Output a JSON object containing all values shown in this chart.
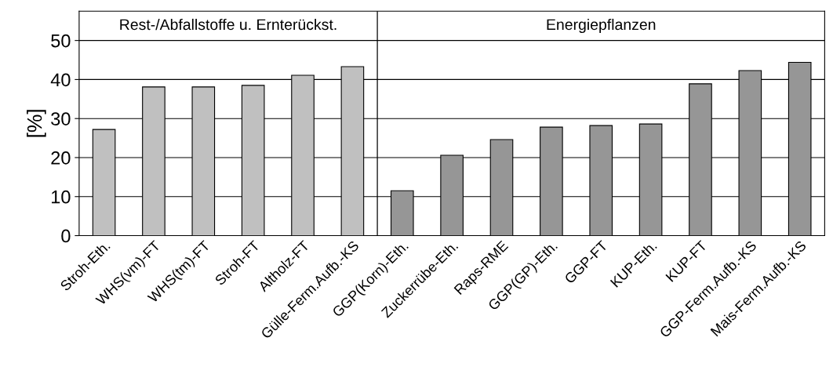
{
  "chart_data": {
    "type": "bar",
    "ylabel": "[%]",
    "categories": [
      "Stroh-Eth.",
      "WHS(vm)-FT",
      "WHS(tm)-FT",
      "Stroh-FT",
      "Altholz-FT",
      "Gülle-Ferm.Aufb.-KS",
      "GGP(Korn)-Eth.",
      "Zuckerrübe-Eth.",
      "Raps-RME",
      "GGP(GP)-Eth.",
      "GGP-FT",
      "KUP-Eth.",
      "KUP-FT",
      "GGP-Ferm.Aufb.-KS",
      "Mais-Ferm.Aufb.-KS"
    ],
    "values": [
      27.2,
      38.1,
      38.1,
      38.5,
      41.1,
      43.3,
      11.5,
      20.6,
      24.6,
      27.8,
      28.2,
      28.6,
      38.9,
      42.3,
      44.4
    ],
    "colors": [
      "#c0c0c0",
      "#c0c0c0",
      "#c0c0c0",
      "#c0c0c0",
      "#c0c0c0",
      "#c0c0c0",
      "#969696",
      "#969696",
      "#969696",
      "#969696",
      "#969696",
      "#969696",
      "#969696",
      "#969696",
      "#969696"
    ],
    "ylim": [
      0,
      57.5
    ],
    "yticks": [
      0,
      10,
      20,
      30,
      40,
      50
    ],
    "grid": "y",
    "annotations": [
      "Rest-/Abfallstoffe u. Ernterückst.",
      "Energiepflanzen"
    ]
  }
}
